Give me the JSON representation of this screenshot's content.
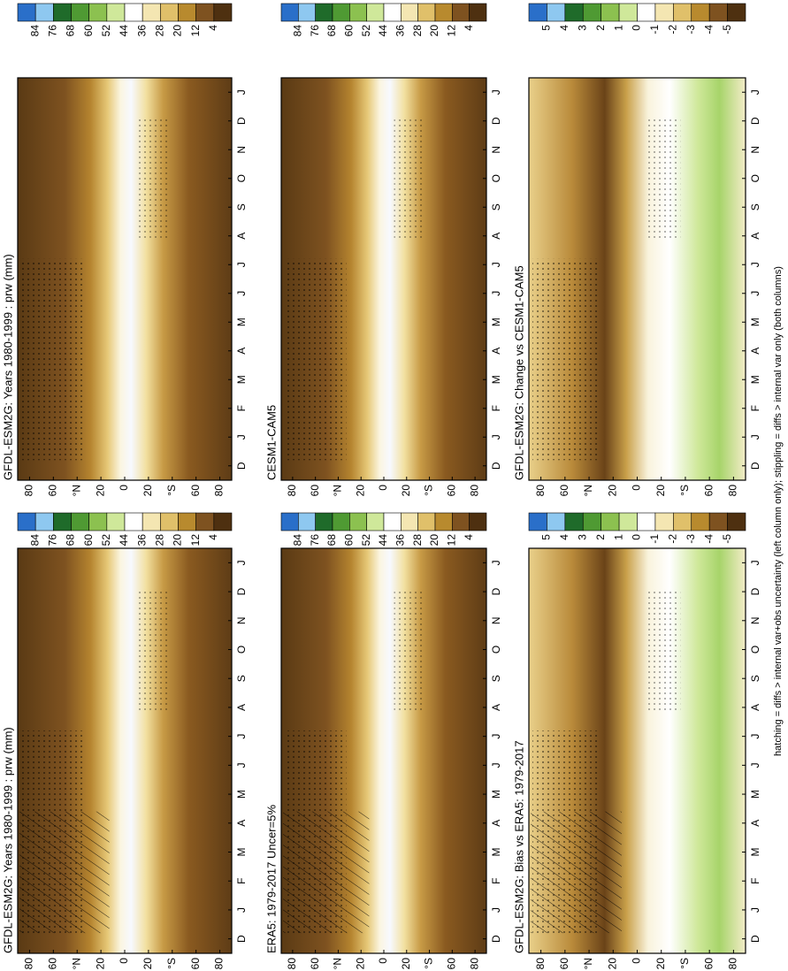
{
  "panels": [
    {
      "title": "GFDL-ESM2G: Years 1980-1999 : prw (mm)",
      "colorbar_labels": [
        "84",
        "76",
        "68",
        "60",
        "52",
        "44",
        "36",
        "28",
        "20",
        "12",
        "4"
      ]
    },
    {
      "title": "GFDL-ESM2G: Years 1980-1999 : prw (mm)",
      "colorbar_labels": [
        "84",
        "76",
        "68",
        "60",
        "52",
        "44",
        "36",
        "28",
        "20",
        "12",
        "4"
      ]
    },
    {
      "title": "ERA5: 1979-2017 Uncer=5%",
      "colorbar_labels": [
        "84",
        "76",
        "68",
        "60",
        "52",
        "44",
        "36",
        "28",
        "20",
        "12",
        "4"
      ]
    },
    {
      "title": "CESM1-CAM5",
      "colorbar_labels": [
        "84",
        "76",
        "68",
        "60",
        "52",
        "44",
        "36",
        "28",
        "20",
        "12",
        "4"
      ]
    },
    {
      "title": "GFDL-ESM2G: Bias vs ERA5: 1979-2017",
      "colorbar_labels": [
        "5",
        "4",
        "3",
        "2",
        "1",
        "0",
        "-1",
        "-2",
        "-3",
        "-4",
        "-5"
      ]
    },
    {
      "title": "GFDL-ESM2G: Change vs CESM1-CAM5",
      "colorbar_labels": [
        "5",
        "4",
        "3",
        "2",
        "1",
        "0",
        "-1",
        "-2",
        "-3",
        "-4",
        "-5"
      ]
    }
  ],
  "months": [
    "D",
    "J",
    "F",
    "M",
    "A",
    "M",
    "J",
    "J",
    "A",
    "S",
    "O",
    "N",
    "D",
    "J"
  ],
  "lat_labels": [
    "80",
    "60",
    "°N",
    "20",
    "0",
    "20",
    "°S",
    "60",
    "80"
  ],
  "footnote": "hatching = diffs > internal var+obs uncertainty (left column only); stippling = diffs > internal var only (both columns)"
}
